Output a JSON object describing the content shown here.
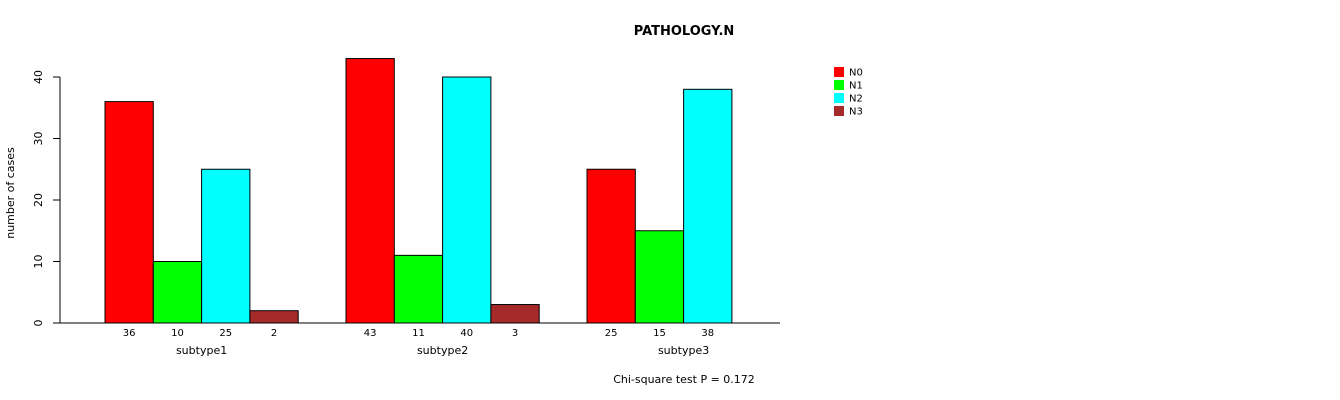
{
  "chart_data": {
    "type": "bar",
    "title": "PATHOLOGY.N",
    "ylabel": "number of cases",
    "xlabel": "",
    "ylim": [
      0,
      40
    ],
    "yticks": [
      0,
      10,
      20,
      30,
      40
    ],
    "groups": [
      "subtype1",
      "subtype2",
      "subtype3"
    ],
    "series": [
      {
        "name": "N0",
        "color": "#ff0000",
        "values": [
          36,
          43,
          25
        ]
      },
      {
        "name": "N1",
        "color": "#00ff00",
        "values": [
          10,
          11,
          15
        ]
      },
      {
        "name": "N2",
        "color": "#00ffff",
        "values": [
          25,
          40,
          38
        ]
      },
      {
        "name": "N3",
        "color": "#a52a2a",
        "values": [
          2,
          3,
          0
        ]
      }
    ],
    "count_labels": [
      [
        "36",
        "10",
        "25",
        "2"
      ],
      [
        "43",
        "11",
        "40",
        "3"
      ],
      [
        "25",
        "15",
        "38"
      ]
    ],
    "legend_position": "top-right",
    "grid": false,
    "annotation": "Chi-square test P = 0.172"
  }
}
